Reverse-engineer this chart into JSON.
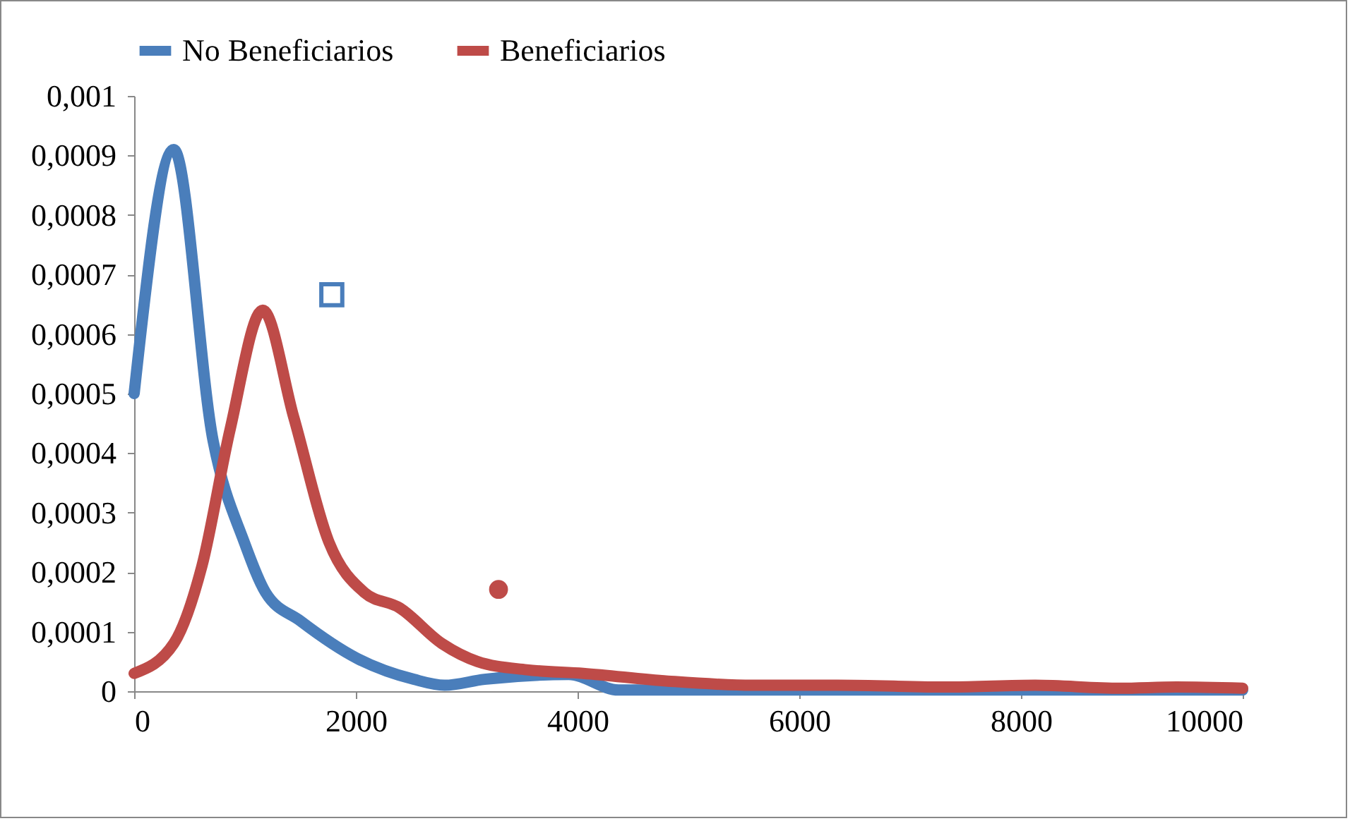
{
  "chart_data": {
    "type": "line",
    "legend": "top",
    "line_style": "solid",
    "xlim": [
      0,
      10000
    ],
    "xticks": [
      0,
      2000,
      4000,
      6000,
      8000,
      10000
    ],
    "ylim": [
      0,
      0.001
    ],
    "yticks": [
      0,
      {
        "value": 0.0001,
        "label": "0,0001"
      },
      {
        "value": 0.0002,
        "label": "0,0002"
      },
      {
        "value": 0.0003,
        "label": "0,0003"
      },
      {
        "value": 0.0004,
        "label": "0,0004"
      },
      {
        "value": 0.0005,
        "label": "0,0005"
      },
      {
        "value": 0.0006,
        "label": "0,0006"
      },
      {
        "value": 0.0007,
        "label": "0,0007"
      },
      {
        "value": 0.0008,
        "label": "0,0008"
      },
      {
        "value": 0.0009,
        "label": "0,0009"
      },
      {
        "value": 0.001,
        "label": "0,001"
      }
    ],
    "series": [
      {
        "name": "No Beneficiarios",
        "color": "#4a7ebb",
        "x": [
          0,
          357,
          713,
          994,
          1185,
          1500,
          2013,
          2522,
          2800,
          3160,
          3920,
          4370,
          5000,
          6000,
          7000,
          8000,
          9000,
          10000
        ],
        "values": [
          0.0005,
          0.00091,
          0.00042,
          0.00025,
          0.000166,
          0.000118,
          5.5e-05,
          2e-05,
          1e-05,
          2e-05,
          2.8e-05,
          2e-06,
          2e-06,
          2e-06,
          2e-06,
          2e-06,
          2e-06,
          2e-06
        ]
      },
      {
        "name": "Beneficiarios",
        "color": "#be4b48",
        "x": [
          0,
          357,
          611,
          866,
          1160,
          1440,
          1758,
          2076,
          2395,
          2777,
          3096,
          3541,
          4051,
          4815,
          5580,
          6344,
          7363,
          8127,
          8892,
          9401,
          10000
        ],
        "values": [
          3e-05,
          8e-05,
          0.00021,
          0.00044,
          0.00064,
          0.00046,
          0.00025,
          0.000166,
          0.00014,
          8e-05,
          5e-05,
          3.6e-05,
          3e-05,
          1.7e-05,
          1e-05,
          1e-05,
          7e-06,
          1e-05,
          5e-06,
          7e-06,
          5e-06
        ]
      },
      {
        "type": "scatter",
        "marker": "square",
        "color": "#4a7ebb",
        "x": [
          1783
        ],
        "values": [
          0.000666
        ]
      },
      {
        "type": "scatter",
        "marker": "circle",
        "color": "#be4b48",
        "x": [
          3287
        ],
        "values": [
          0.000171
        ]
      }
    ]
  }
}
